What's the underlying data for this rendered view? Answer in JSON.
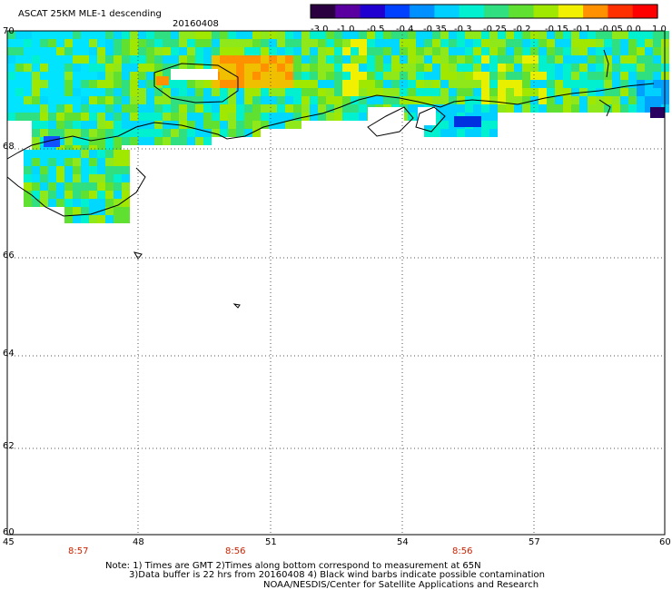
{
  "header": {
    "title": "ASCAT 25KM MLE-1 descending",
    "date": "20160408"
  },
  "colorbar": {
    "labels": [
      "-3.0",
      "-1.0",
      "-0.5",
      "-0.4",
      "-0.35",
      "-0.3",
      "-0.25",
      "-0.2",
      "-0.15",
      "-0.1",
      "-0.05",
      "0.0",
      "1.0"
    ],
    "colors": [
      "#2a0040",
      "#5a00a0",
      "#2000d0",
      "#0040ff",
      "#0090ff",
      "#00d0ff",
      "#00f0d0",
      "#30e080",
      "#60e030",
      "#a0e800",
      "#f0f000",
      "#ff9000",
      "#ff3000",
      "#ff0000"
    ]
  },
  "map": {
    "lat_labels": [
      "70",
      "68",
      "66",
      "64",
      "62",
      "60"
    ],
    "lon_labels": [
      "45",
      "48",
      "51",
      "54",
      "57",
      "60"
    ],
    "time_labels": [
      "8:57",
      "8:56",
      "8:56"
    ]
  },
  "notes": {
    "line1": "Note: 1) Times are GMT 2)Times along bottom correspond to measurement at 65N",
    "line2": "3)Data buffer is 22 hrs from 20160408 4) Black wind barbs indicate possible contamination",
    "line3": "NOAA/NESDIS/Center for Satellite Applications and Research"
  }
}
